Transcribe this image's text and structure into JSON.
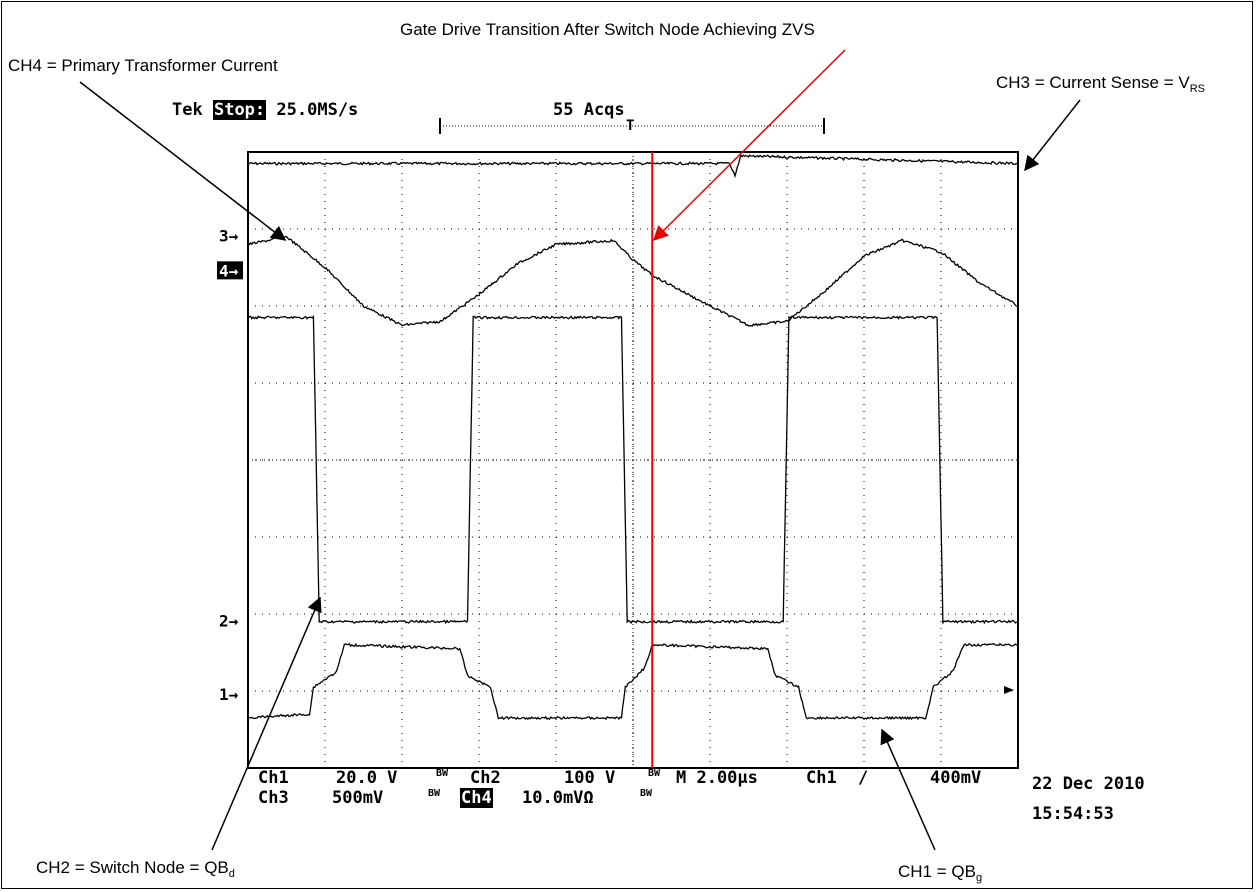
{
  "annotations": {
    "ch4": "CH4 = Primary Transformer Current",
    "gate": "Gate Drive Transition After Switch Node Achieving ZVS",
    "ch3_main": "CH3 = Current Sense = V",
    "ch3_sub": "RS",
    "ch2_main": "CH2 = Switch Node = QB",
    "ch2_sub": "d",
    "ch1_main": "CH1 = QB",
    "ch1_sub": "g"
  },
  "scope": {
    "brand": "Tek",
    "state": "Stop:",
    "rate": "25.0MS/s",
    "acqs": "55 Acqs",
    "trigger_marker": "T",
    "settings_row1": {
      "ch1_label": "Ch1",
      "ch1_scale": "20.0 V",
      "bw1": "BW",
      "ch2_label": "Ch2",
      "ch2_scale": "100 V",
      "bw2": "BW",
      "timebase": "M 2.00µs",
      "trig_src": "Ch1",
      "trig_slope": "∕",
      "trig_level": "400mV"
    },
    "settings_row2": {
      "ch3_label": "Ch3",
      "ch3_scale": "500mV",
      "bw3": "BW",
      "ch4_label": "Ch4",
      "ch4_scale": "10.0mVΩ",
      "bw4": "BW"
    },
    "date": "22 Dec 2010",
    "time": "15:54:53"
  },
  "chart_data": {
    "type": "line",
    "x_unit": "µs",
    "x_divisions": 10,
    "y_divisions": 8,
    "time_per_div_us": 2.0,
    "xlim": [
      0,
      20
    ],
    "ylim": [
      -4,
      4
    ],
    "grid": true,
    "channel_markers": [
      {
        "label": "3",
        "level_div": 2.9
      },
      {
        "label": "4",
        "level_div": 2.45
      },
      {
        "label": "2",
        "level_div": -2.1
      },
      {
        "label": "1",
        "level_div": -3.05
      }
    ],
    "series": [
      {
        "name": "CH3",
        "note": "Current Sense, flat with small glitches",
        "x": [
          0,
          12.5,
          12.65,
          12.8,
          20
        ],
        "y": [
          3.85,
          3.85,
          3.7,
          3.95,
          3.85
        ]
      },
      {
        "name": "CH4",
        "note": "Primary Transformer Current, sinusoid-like",
        "x": [
          0,
          1.0,
          2.0,
          3.0,
          4.0,
          5.0,
          6.0,
          7.0,
          8.0,
          9.5,
          10.0,
          10.5,
          12.0,
          13.0,
          14.0,
          15.0,
          16.0,
          17.0,
          18.0,
          19.0,
          20.0
        ],
        "y": [
          2.8,
          2.9,
          2.5,
          2.0,
          1.75,
          1.8,
          2.15,
          2.55,
          2.8,
          2.85,
          2.6,
          2.4,
          2.0,
          1.75,
          1.8,
          2.2,
          2.65,
          2.85,
          2.7,
          2.3,
          2.0
        ]
      },
      {
        "name": "CH2",
        "note": "Switch Node, square wave",
        "x": [
          0,
          1.7,
          1.85,
          5.7,
          5.85,
          9.7,
          9.85,
          13.9,
          14.05,
          17.9,
          18.05,
          20.0
        ],
        "y": [
          1.85,
          1.85,
          -2.1,
          -2.1,
          1.85,
          1.85,
          -2.1,
          -2.1,
          1.85,
          1.85,
          -2.1,
          -2.1
        ]
      },
      {
        "name": "CH1",
        "note": "Gate drive with plateau steps",
        "x": [
          0,
          1.6,
          1.7,
          2.3,
          2.5,
          5.5,
          5.7,
          6.3,
          6.5,
          9.7,
          9.8,
          10.3,
          10.5,
          13.5,
          13.7,
          14.3,
          14.5,
          17.6,
          17.8,
          18.3,
          18.6,
          20.0
        ],
        "y": [
          -3.35,
          -3.3,
          -2.95,
          -2.75,
          -2.4,
          -2.45,
          -2.8,
          -2.95,
          -3.35,
          -3.35,
          -2.95,
          -2.7,
          -2.4,
          -2.45,
          -2.8,
          -2.95,
          -3.35,
          -3.35,
          -2.95,
          -2.75,
          -2.4,
          -2.4
        ]
      }
    ],
    "cursor_x": 10.5
  }
}
